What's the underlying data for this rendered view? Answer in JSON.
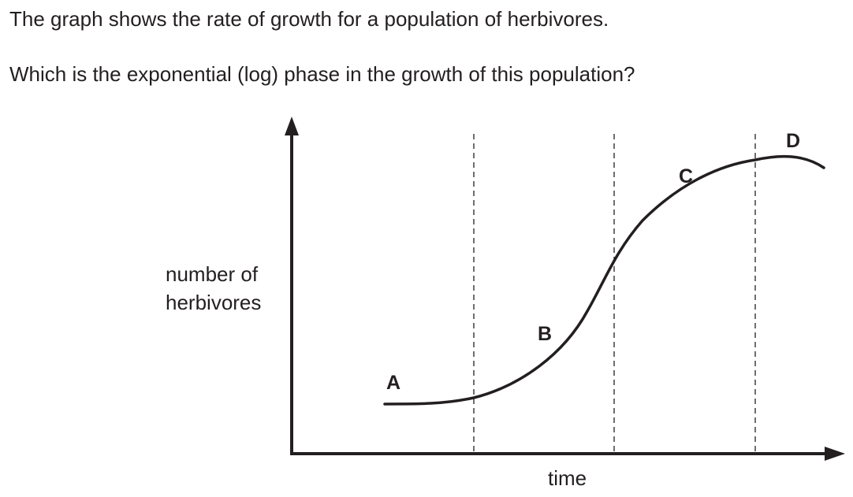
{
  "question": {
    "line1": "The graph shows the rate of growth for a population of herbivores.",
    "line2": "Which is the exponential (log) phase in the growth of this population?"
  },
  "chart_data": {
    "type": "line",
    "title": "",
    "xlabel": "time",
    "ylabel_lines": [
      "number of",
      "herbivores"
    ],
    "x_ticks_shown": false,
    "y_ticks_shown": false,
    "phase_boundaries": [
      "A|B",
      "B|C",
      "C|D"
    ],
    "phase_labels": [
      "A",
      "B",
      "C",
      "D"
    ],
    "curve_shape": "sigmoid growth curve with lag, exponential, deceleration and decline phases",
    "grid": false,
    "legend": "none",
    "colors": {
      "ink": "#231f20"
    }
  }
}
